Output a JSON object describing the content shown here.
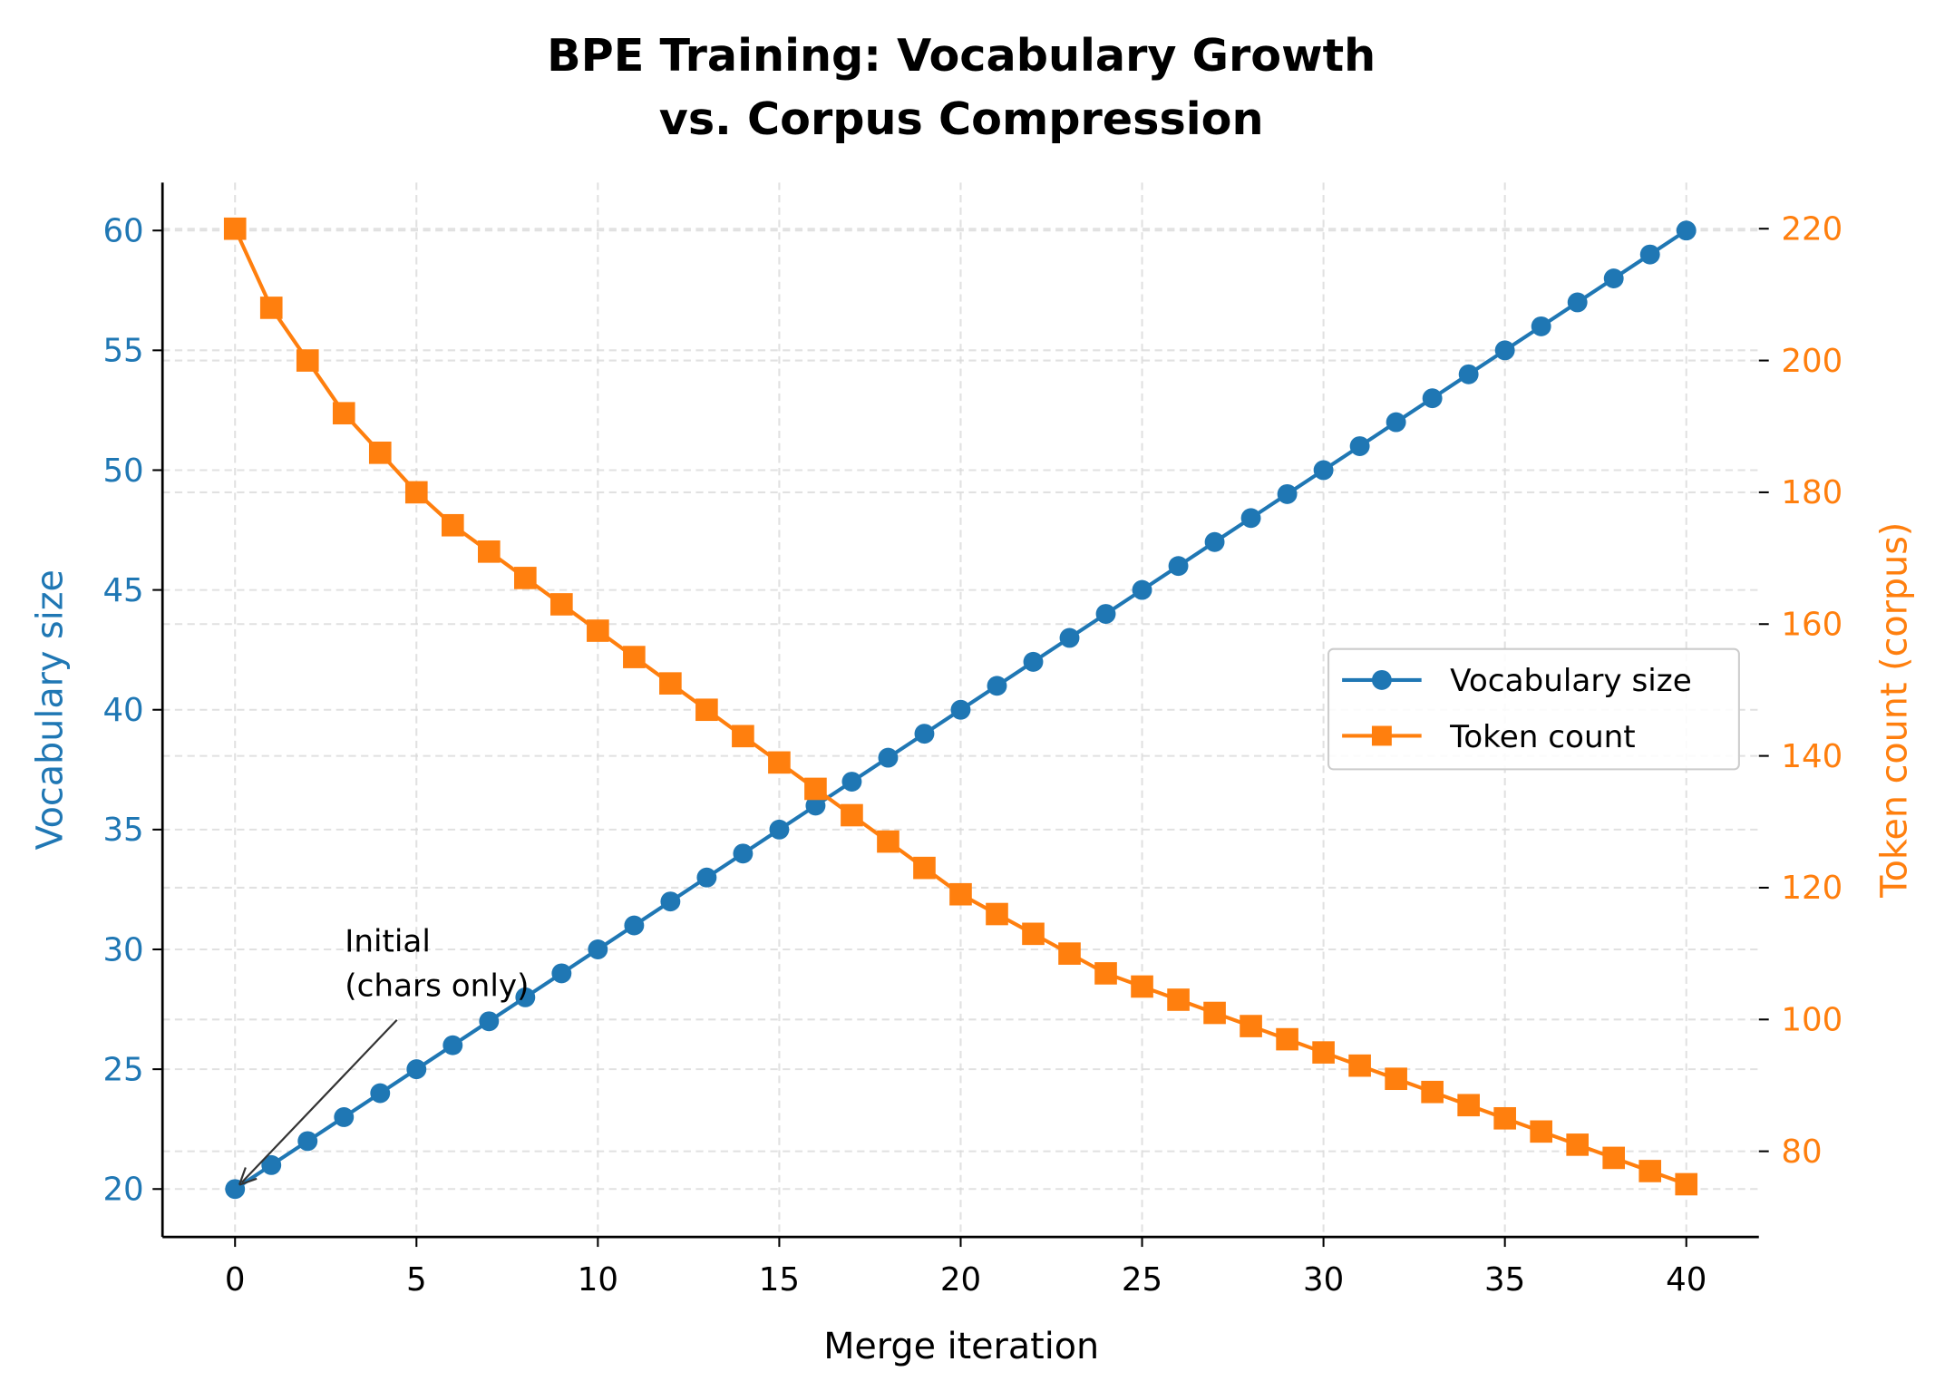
{
  "chart_data": {
    "type": "line",
    "title_lines": [
      "BPE Training: Vocabulary Growth",
      "vs. Corpus Compression"
    ],
    "xlabel": "Merge iteration",
    "ylabel_left": "Vocabulary size",
    "ylabel_right": "Token count (corpus)",
    "xlim": [
      -2,
      42
    ],
    "ylim_left": [
      18,
      62
    ],
    "ylim_right": [
      67,
      227
    ],
    "xticks": [
      0,
      5,
      10,
      15,
      20,
      25,
      30,
      35,
      40
    ],
    "yticks_left": [
      20,
      25,
      30,
      35,
      40,
      45,
      50,
      55,
      60
    ],
    "yticks_right": [
      80,
      100,
      120,
      140,
      160,
      180,
      200,
      220
    ],
    "grid": true,
    "legend_placement": "center-right",
    "x": [
      0,
      1,
      2,
      3,
      4,
      5,
      6,
      7,
      8,
      9,
      10,
      11,
      12,
      13,
      14,
      15,
      16,
      17,
      18,
      19,
      20,
      21,
      22,
      23,
      24,
      25,
      26,
      27,
      28,
      29,
      30,
      31,
      32,
      33,
      34,
      35,
      36,
      37,
      38,
      39,
      40
    ],
    "series": [
      {
        "name": "Vocabulary size",
        "axis": "left",
        "marker": "circle",
        "color": "#1f77b4",
        "values": [
          20,
          21,
          22,
          23,
          24,
          25,
          26,
          27,
          28,
          29,
          30,
          31,
          32,
          33,
          34,
          35,
          36,
          37,
          38,
          39,
          40,
          41,
          42,
          43,
          44,
          45,
          46,
          47,
          48,
          49,
          50,
          51,
          52,
          53,
          54,
          55,
          56,
          57,
          58,
          59,
          60
        ]
      },
      {
        "name": "Token count",
        "axis": "right",
        "marker": "square",
        "color": "#ff7f0e",
        "values": [
          220,
          208,
          200,
          192,
          186,
          180,
          175,
          171,
          167,
          163,
          159,
          155,
          151,
          147,
          143,
          139,
          135,
          131,
          127,
          123,
          119,
          116,
          113,
          110,
          107,
          105,
          103,
          101,
          99,
          97,
          95,
          93,
          91,
          89,
          87,
          85,
          83,
          81,
          79,
          77,
          75
        ]
      }
    ],
    "annotation": {
      "text_lines": [
        "Initial",
        "(chars only)"
      ],
      "points_to": {
        "x": 0,
        "y": 20
      }
    }
  }
}
